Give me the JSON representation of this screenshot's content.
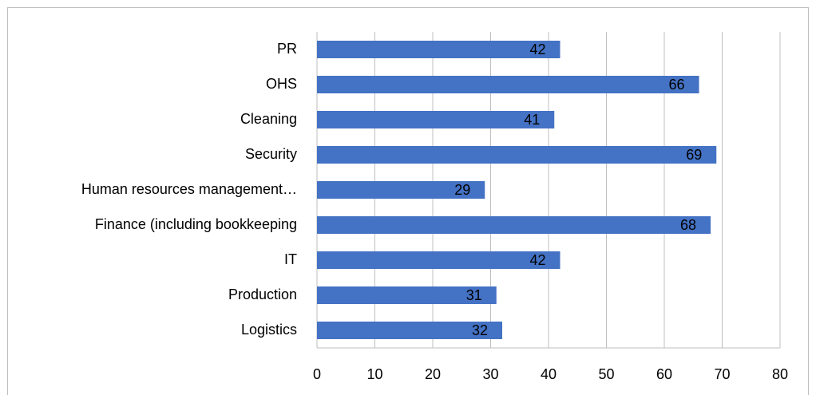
{
  "chart_data": {
    "type": "bar",
    "orientation": "horizontal",
    "categories": [
      "PR",
      "OHS",
      "Cleaning",
      "Security",
      "Human resources management…",
      "Finance (including bookkeeping",
      "IT",
      "Production",
      "Logistics"
    ],
    "values": [
      42,
      66,
      41,
      69,
      29,
      68,
      42,
      31,
      32
    ],
    "color": "#4472c4",
    "xlim": [
      0,
      80
    ],
    "xticks": [
      0,
      10,
      20,
      30,
      40,
      50,
      60,
      70,
      80
    ],
    "grid": true
  }
}
